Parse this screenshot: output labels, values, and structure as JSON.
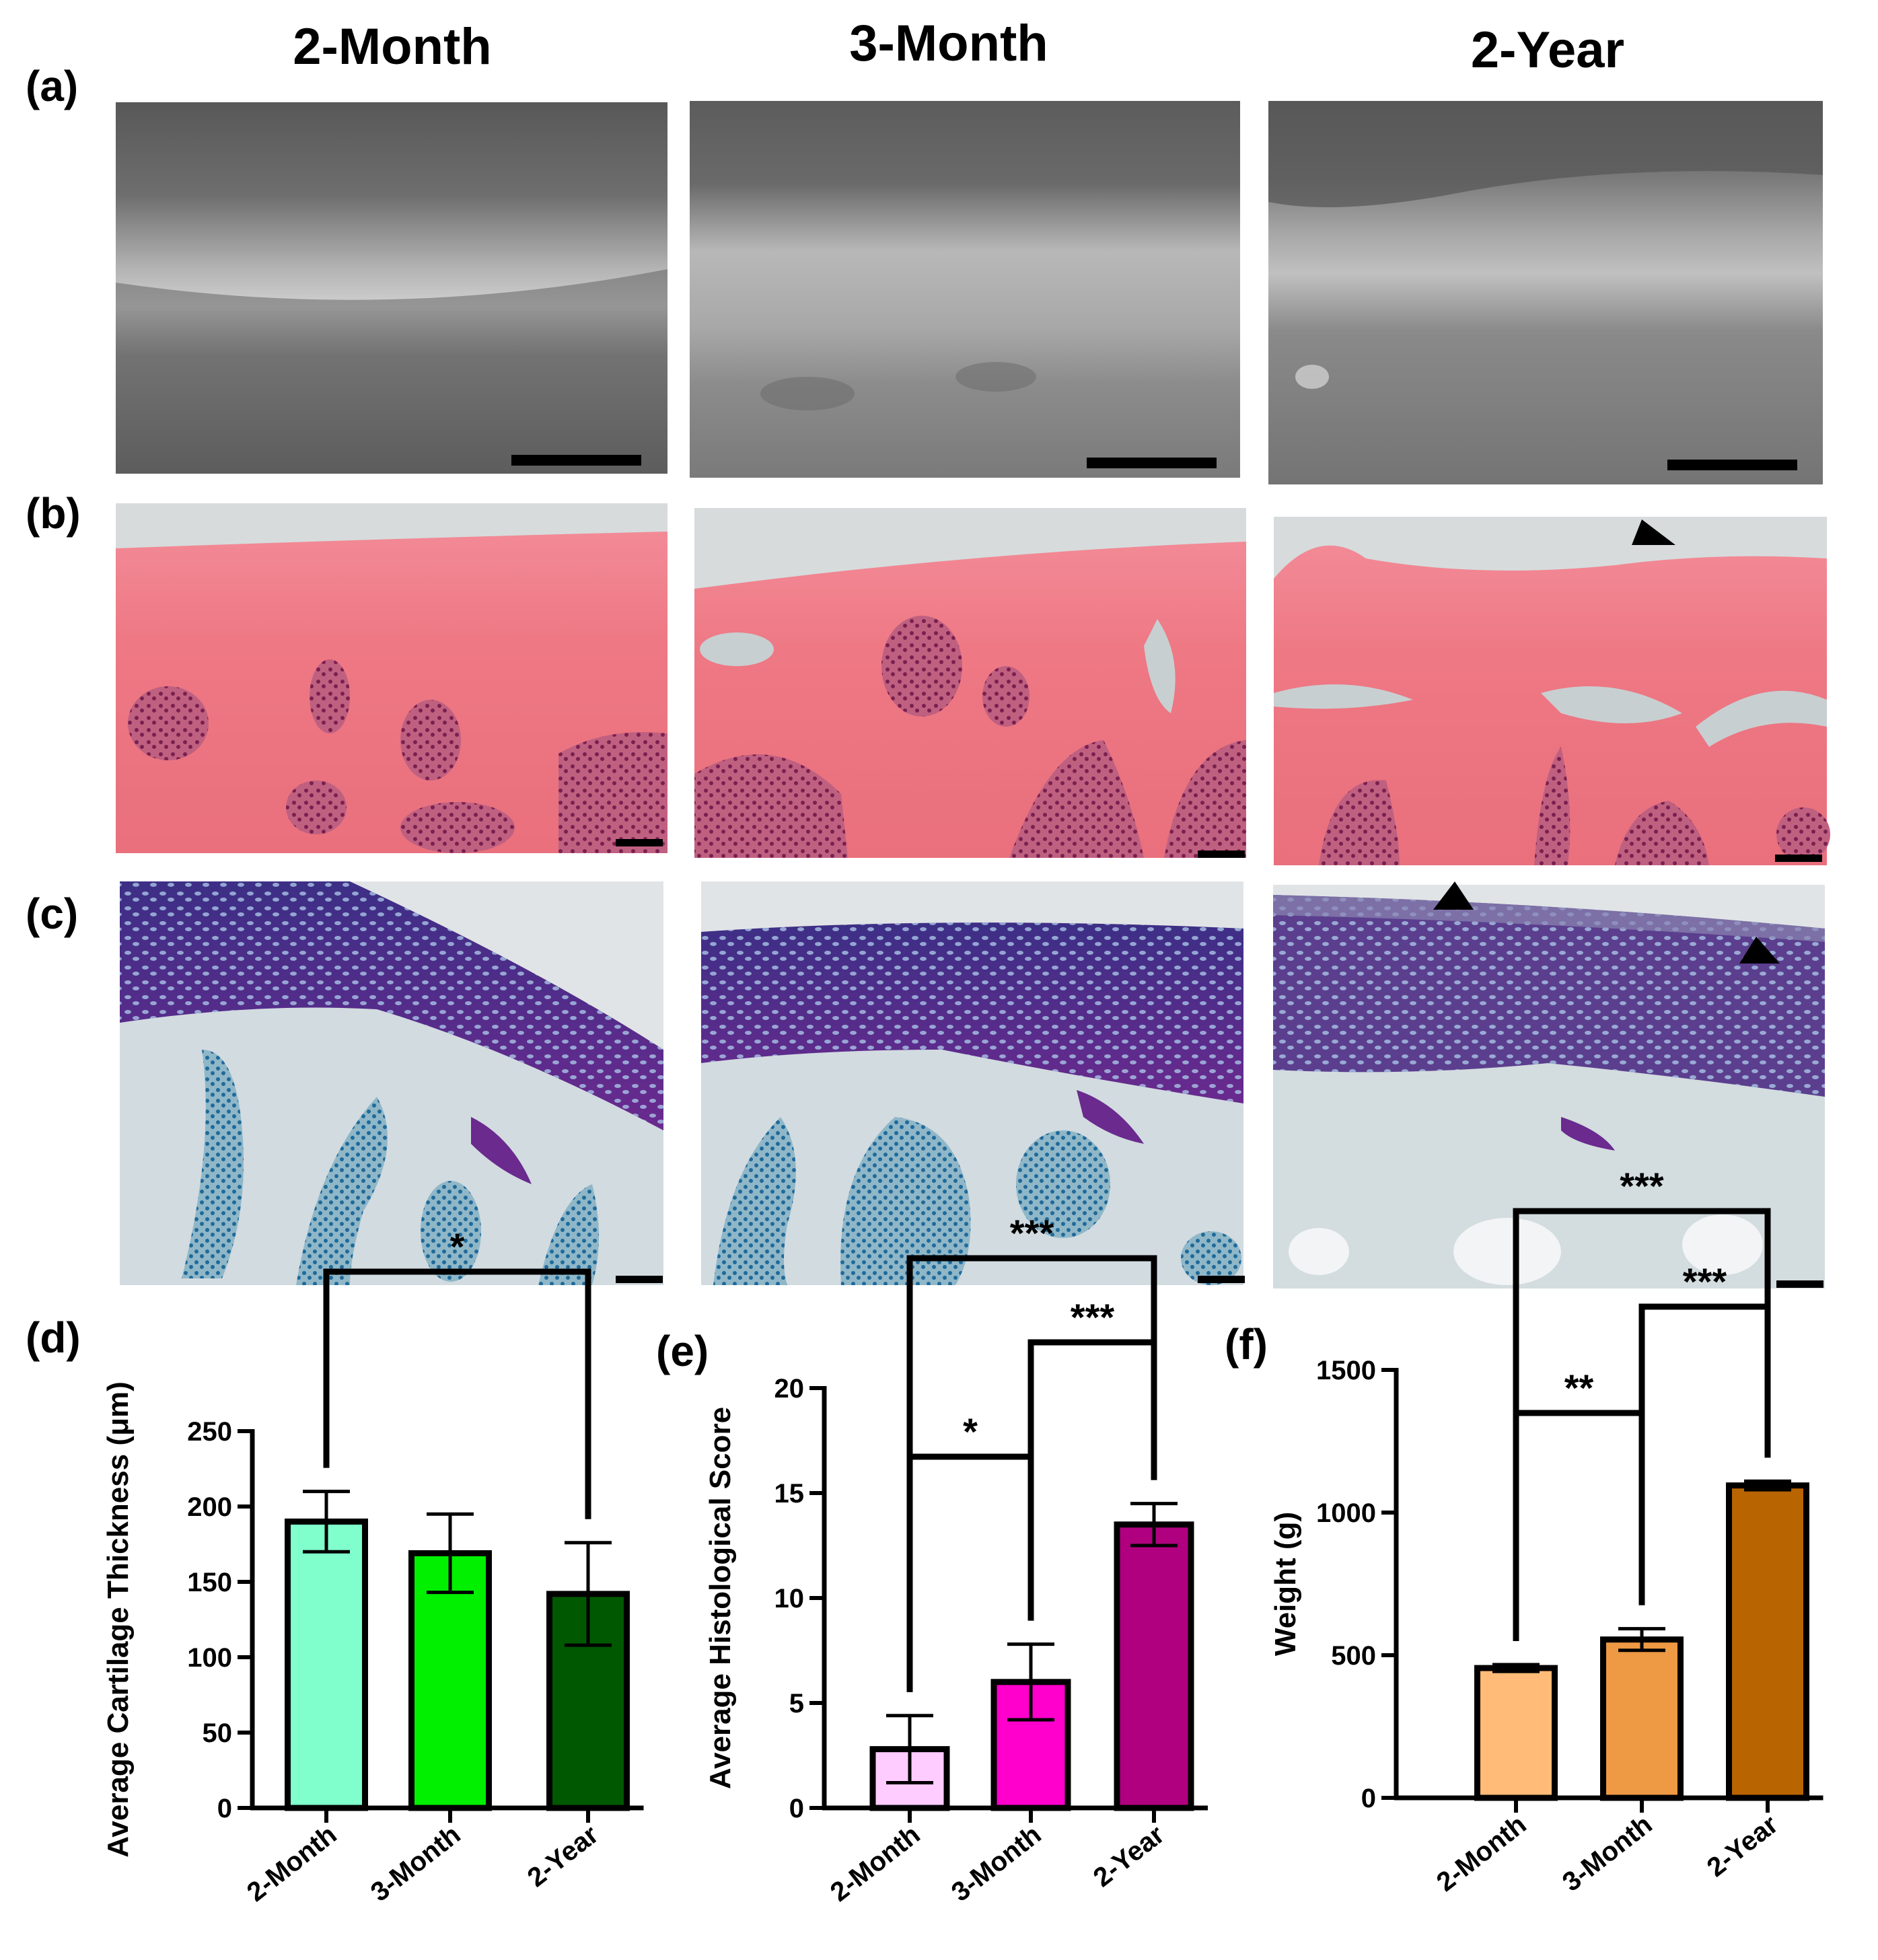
{
  "column_titles": [
    "2-Month",
    "3-Month",
    "2-Year"
  ],
  "panel_labels": [
    "(a)",
    "(b)",
    "(c)",
    "(d)",
    "(e)",
    "(f)"
  ],
  "colors": {
    "d": [
      "#80ffcc",
      "#00f000",
      "#005800"
    ],
    "e": [
      "#ffccff",
      "#ff00cc",
      "#b00080"
    ],
    "f": [
      "#ffbb77",
      "#ee9944",
      "#b86400"
    ]
  },
  "chart_data": [
    {
      "type": "bar",
      "panel": "(d)",
      "categories": [
        "2-Month",
        "3-Month",
        "2-Year"
      ],
      "values": [
        190,
        169,
        142
      ],
      "errors": [
        20,
        26,
        34
      ],
      "ylabel": "Average Cartilage Thickness (μm)",
      "ylim": [
        0,
        250
      ],
      "yticks": [
        0,
        50,
        100,
        150,
        200,
        250
      ],
      "significance": [
        {
          "from": 0,
          "to": 2,
          "label": "*"
        }
      ]
    },
    {
      "type": "bar",
      "panel": "(e)",
      "categories": [
        "2-Month",
        "3-Month",
        "2-Year"
      ],
      "values": [
        2.8,
        6.0,
        13.5
      ],
      "errors": [
        1.6,
        1.8,
        1.0
      ],
      "ylabel": "Average Histological Score",
      "ylim": [
        0,
        20
      ],
      "yticks": [
        0,
        5,
        10,
        15,
        20
      ],
      "significance": [
        {
          "from": 0,
          "to": 1,
          "label": "*"
        },
        {
          "from": 1,
          "to": 2,
          "label": "***"
        },
        {
          "from": 0,
          "to": 2,
          "label": "***"
        }
      ]
    },
    {
      "type": "bar",
      "panel": "(f)",
      "categories": [
        "2-Month",
        "3-Month",
        "2-Year"
      ],
      "values": [
        455,
        555,
        1095
      ],
      "errors": [
        12,
        38,
        15
      ],
      "ylabel": "Weight (g)",
      "ylim": [
        0,
        1500
      ],
      "yticks": [
        0,
        500,
        1000,
        1500
      ],
      "significance": [
        {
          "from": 0,
          "to": 1,
          "label": "**"
        },
        {
          "from": 1,
          "to": 2,
          "label": "***"
        },
        {
          "from": 0,
          "to": 2,
          "label": "***"
        }
      ]
    }
  ]
}
